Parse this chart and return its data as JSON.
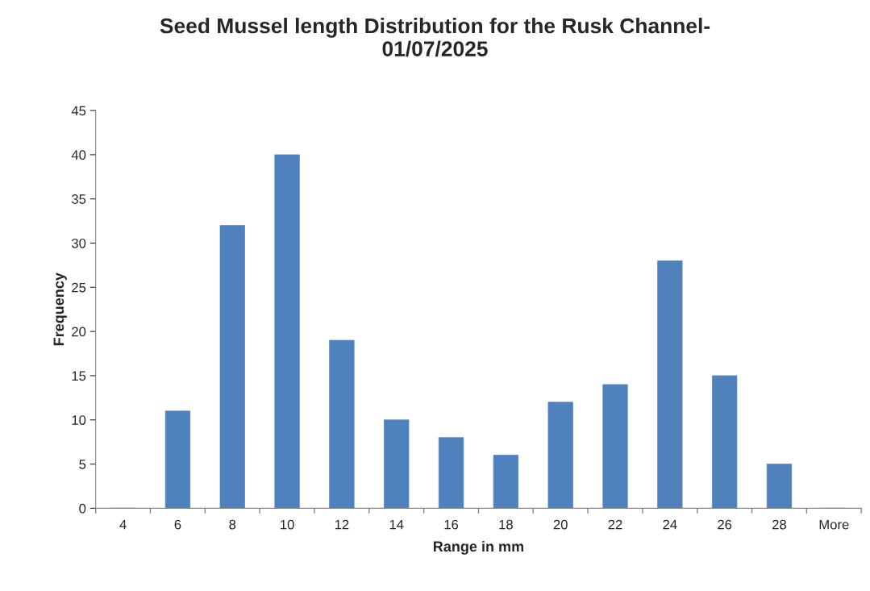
{
  "chart_data": {
    "type": "bar",
    "title": "Seed Mussel length Distribution for the Rusk Channel-\n01/07/2025",
    "xlabel": "Range in mm",
    "ylabel": "Frequency",
    "categories": [
      "4",
      "6",
      "8",
      "10",
      "12",
      "14",
      "16",
      "18",
      "20",
      "22",
      "24",
      "26",
      "28",
      "More"
    ],
    "values": [
      0,
      11,
      32,
      40,
      19,
      10,
      8,
      6,
      12,
      14,
      28,
      15,
      5,
      0
    ],
    "color": "#4f81bd",
    "ylim": [
      0,
      45
    ],
    "yticks": [
      0,
      5,
      10,
      15,
      20,
      25,
      30,
      35,
      40,
      45
    ],
    "grid": false,
    "legend": false
  }
}
